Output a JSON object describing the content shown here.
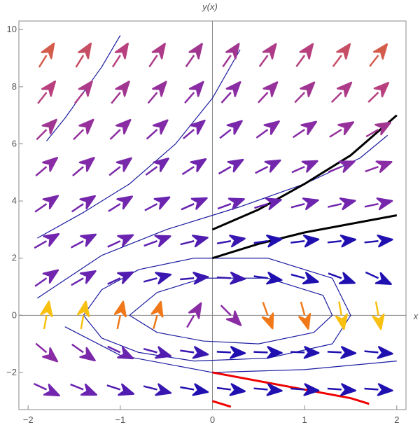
{
  "chart_data": {
    "type": "vectorfield",
    "x_label": "x",
    "y_label": "y(x)",
    "xlim": [
      -2.1,
      2.1
    ],
    "ylim": [
      -3.3,
      10.3
    ],
    "xticks": [
      {
        "value": -2,
        "label": "−2"
      },
      {
        "value": -1,
        "label": "−1"
      },
      0,
      1,
      2
    ],
    "yticks": [
      {
        "value": -2,
        "label": "−2"
      },
      0,
      2,
      4,
      6,
      8,
      10
    ],
    "field": {
      "x": [
        -1.8,
        -1.4,
        -1.0,
        -0.6,
        -0.2,
        0.2,
        0.6,
        1.0,
        1.4,
        1.8
      ],
      "y": [
        9.1,
        7.8,
        6.5,
        5.2,
        3.9,
        2.6,
        1.3,
        0,
        -1.3,
        -2.6
      ],
      "angles": [
        [
          58,
          58,
          57,
          56,
          55,
          55,
          54,
          54,
          53,
          52
        ],
        [
          52,
          52,
          51,
          50,
          49,
          48,
          47,
          46,
          45,
          44
        ],
        [
          45,
          45,
          44,
          42,
          40,
          38,
          36,
          34,
          32,
          30
        ],
        [
          40,
          40,
          38,
          36,
          33,
          30,
          27,
          24,
          22,
          20
        ],
        [
          35,
          34,
          32,
          28,
          24,
          20,
          17,
          15,
          13,
          12
        ],
        [
          30,
          28,
          25,
          20,
          14,
          10,
          8,
          7,
          6,
          6
        ],
        [
          35,
          30,
          25,
          15,
          5,
          -3,
          -8,
          -15,
          -20,
          -25
        ],
        [
          80,
          80,
          78,
          75,
          60,
          -45,
          -70,
          -75,
          -80,
          -80
        ],
        [
          -40,
          -35,
          -25,
          -15,
          -8,
          -3,
          -2,
          -2,
          -3,
          -5
        ],
        [
          -25,
          -22,
          -18,
          -14,
          -10,
          -7,
          -5,
          -4,
          -4,
          -4
        ]
      ],
      "speeds": [
        [
          8,
          7.5,
          7,
          6.5,
          6,
          6,
          6.5,
          7,
          7.5,
          8
        ],
        [
          7,
          6.5,
          6,
          5.5,
          5,
          5,
          5.5,
          6,
          6.5,
          7
        ],
        [
          6,
          5.5,
          5,
          4.5,
          4,
          4,
          4.5,
          5,
          5.5,
          6
        ],
        [
          5,
          4.5,
          4,
          3.5,
          3.3,
          3.3,
          3.5,
          4,
          4.5,
          5
        ],
        [
          4,
          3.8,
          3.5,
          3,
          3,
          3,
          3,
          3.2,
          3.5,
          3.8
        ],
        [
          3.5,
          3.2,
          3,
          2.8,
          2.5,
          2,
          1.5,
          1.5,
          1.5,
          1.5
        ],
        [
          3.5,
          3,
          2.5,
          2,
          2,
          2,
          1.5,
          1.5,
          1.5,
          1.5
        ],
        [
          10,
          10,
          9,
          9,
          5,
          5,
          9,
          9,
          10,
          10
        ],
        [
          5,
          4,
          3,
          2.5,
          2,
          1.5,
          1.5,
          1.5,
          1.5,
          1.5
        ],
        [
          3.5,
          3,
          2.5,
          2,
          1.5,
          1.5,
          1.5,
          1.5,
          1.5,
          1.5
        ]
      ],
      "colorscale": [
        {
          "value": 1.5,
          "color": "#2010b0"
        },
        {
          "value": 3,
          "color": "#6a24b0"
        },
        {
          "value": 5,
          "color": "#8a2ca4"
        },
        {
          "value": 7,
          "color": "#b8407e"
        },
        {
          "value": 9,
          "color": "#f07818"
        },
        {
          "value": 10,
          "color": "#f8c010"
        }
      ]
    },
    "curves": [
      {
        "color": "#1a1aa0",
        "width": 1.2,
        "x": [
          -1.8,
          -1.6,
          -1.4,
          -1.2,
          -1.0
        ],
        "y": [
          6.1,
          6.9,
          7.8,
          8.7,
          9.8
        ]
      },
      {
        "color": "#1a1aa0",
        "width": 1.2,
        "x": [
          -1.9,
          -1.4,
          -0.9,
          -0.4,
          0,
          0.3
        ],
        "y": [
          2.7,
          3.6,
          4.6,
          6.0,
          7.6,
          9.3
        ]
      },
      {
        "color": "#1a1aa0",
        "width": 1.2,
        "x": [
          -1.9,
          -1.2,
          -0.5,
          0.3,
          1.0,
          1.6,
          1.9
        ],
        "y": [
          0.6,
          2.1,
          3.0,
          3.8,
          4.6,
          5.5,
          6.3
        ]
      },
      {
        "color": "#1a1aa0",
        "width": 1.2,
        "x": [
          -1.4,
          -1.2,
          -0.8,
          -0.2,
          0.6,
          1.3,
          1.5,
          1.3,
          0.6,
          -0.2,
          -0.8,
          -1.2,
          -1.4
        ],
        "y": [
          0,
          0.9,
          1.6,
          2.0,
          2.0,
          1.3,
          0,
          -1.0,
          -1.5,
          -1.6,
          -1.3,
          -0.8,
          0
        ]
      },
      {
        "color": "#1a1aa0",
        "width": 1.2,
        "x": [
          -0.9,
          -0.6,
          -0.1,
          0.6,
          1.2,
          1.3,
          1.1,
          0.5,
          -0.1,
          -0.6,
          -0.9
        ],
        "y": [
          0,
          0.8,
          1.3,
          1.3,
          0.7,
          0,
          -0.6,
          -1.0,
          -0.9,
          -0.6,
          0
        ]
      },
      {
        "color": "#1a1aa0",
        "width": 1.2,
        "x": [
          -1.6,
          -1.0,
          0,
          1.0,
          2.0
        ],
        "y": [
          -0.4,
          -1.4,
          -2.0,
          -1.9,
          -1.6
        ]
      },
      {
        "color": "#000000",
        "width": 3,
        "x": [
          0,
          0.5,
          1,
          1.5,
          2
        ],
        "y": [
          3,
          3.7,
          4.6,
          5.6,
          7
        ]
      },
      {
        "color": "#000000",
        "width": 3,
        "x": [
          0,
          0.5,
          1,
          1.5,
          2
        ],
        "y": [
          2,
          2.5,
          2.9,
          3.2,
          3.5
        ]
      },
      {
        "color": "#ee0000",
        "width": 3,
        "x": [
          0,
          0.5,
          1,
          1.5,
          1.7
        ],
        "y": [
          -2,
          -2.3,
          -2.6,
          -2.9,
          -3.1
        ]
      },
      {
        "color": "#ee0000",
        "width": 3,
        "x": [
          0,
          0.2
        ],
        "y": [
          -3,
          -3.2
        ]
      }
    ]
  }
}
